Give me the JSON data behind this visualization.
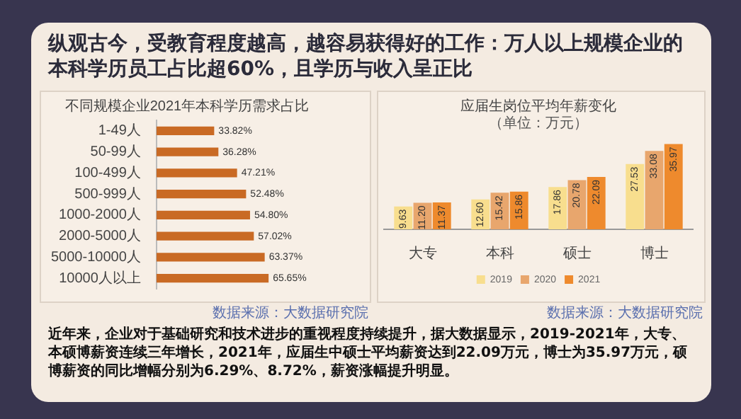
{
  "chart_data": [
    {
      "type": "other",
      "title": "纵观古今，受教育程度越高，越容易获得好的工作：万人以上规模企业的本科学历员工占比超60%，且学历与收入呈正比",
      "annotations": [
        "近年来，企业对于基础研究和技术进步的重视程度持续提升，据大数据显示，2019-2021年，大专、本硕博薪资连续三年增长，2021年，应届生中硕士平均薪资达到22.09万元，博士为35.97万元，硕博薪资的同比增幅分别为6.29%、8.72%，薪资涨幅提升明显。"
      ]
    },
    {
      "type": "bar",
      "orientation": "horizontal",
      "title": "不同规模企业2021年本科学历需求占比",
      "categories": [
        "1-49人",
        "50-99人",
        "100-499人",
        "500-999人",
        "1000-2000人",
        "2000-5000人",
        "5000-10000人",
        "10000人以上"
      ],
      "values": [
        33.82,
        36.28,
        47.21,
        52.48,
        54.8,
        57.02,
        63.37,
        65.65
      ],
      "value_labels": [
        "33.82%",
        "36.28%",
        "47.21%",
        "52.48%",
        "54.80%",
        "57.02%",
        "63.37%",
        "65.65%"
      ],
      "color": "#c96a24",
      "tick_labels": "y",
      "annotations": [
        "数据来源：大数据研究院"
      ]
    },
    {
      "type": "bar",
      "title": "应届生岗位平均年薪变化",
      "subtitle": "（单位：万元）",
      "categories": [
        "大专",
        "本科",
        "硕士",
        "博士"
      ],
      "series": [
        {
          "name": "2019",
          "color": "#f8de8e",
          "values": [
            9.63,
            12.6,
            17.86,
            27.53
          ],
          "value_labels": [
            "9.63",
            "12.60",
            "17.86",
            "27.53"
          ]
        },
        {
          "name": "2020",
          "color": "#e8a66d",
          "values": [
            11.2,
            15.42,
            20.78,
            33.08
          ],
          "value_labels": [
            "11.20",
            "15.42",
            "20.78",
            "33.08"
          ]
        },
        {
          "name": "2021",
          "color": "#ee8a2d",
          "values": [
            11.37,
            15.86,
            22.09,
            35.97
          ],
          "value_labels": [
            "11.37",
            "15.86",
            "22.09",
            "35.97"
          ]
        }
      ],
      "tick_labels": "x",
      "legend": "bottom",
      "annotations": [
        "数据来源：大数据研究院"
      ]
    }
  ]
}
